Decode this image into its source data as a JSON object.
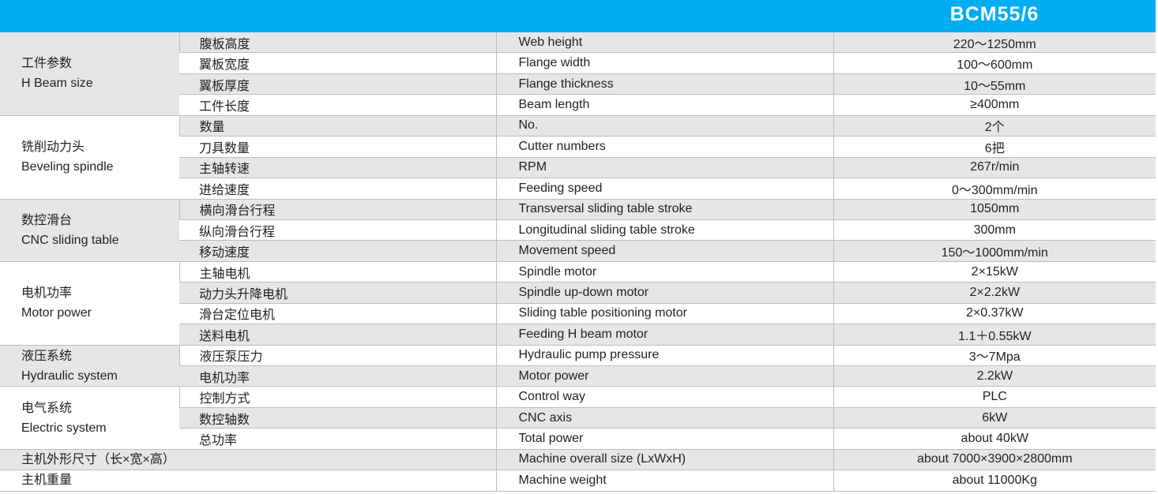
{
  "header": {
    "title": "BCM55/6",
    "color": "#00aeef"
  },
  "groups": [
    {
      "zh": "工件参数",
      "en": "H Beam size",
      "rows": [
        {
          "zh": "腹板高度",
          "en": "Web height",
          "value": "220～1250mm"
        },
        {
          "zh": "翼板宽度",
          "en": "Flange width",
          "value": "100～600mm"
        },
        {
          "zh": "翼板厚度",
          "en": "Flange thickness",
          "value": "10～55mm"
        },
        {
          "zh": "工件长度",
          "en": "Beam length",
          "value": "≥400mm"
        }
      ]
    },
    {
      "zh": "铣削动力头",
      "en": "Beveling spindle",
      "rows": [
        {
          "zh": "数量",
          "en": "No.",
          "value": "2个"
        },
        {
          "zh": "刀具数量",
          "en": "Cutter numbers",
          "value": "6把"
        },
        {
          "zh": "主轴转速",
          "en": "RPM",
          "value": "267r/min"
        },
        {
          "zh": "进给速度",
          "en": "Feeding speed",
          "value": "0～300mm/min"
        }
      ]
    },
    {
      "zh": "数控滑台",
      "en": "CNC sliding table",
      "rows": [
        {
          "zh": "横向滑台行程",
          "en": "Transversal sliding table stroke",
          "value": "1050mm"
        },
        {
          "zh": "纵向滑台行程",
          "en": "Longitudinal sliding table stroke",
          "value": "300mm"
        },
        {
          "zh": "移动速度",
          "en": "Movement speed",
          "value": "150～1000mm/min"
        }
      ]
    },
    {
      "zh": "电机功率",
      "en": "Motor power",
      "rows": [
        {
          "zh": "主轴电机",
          "en": "Spindle motor",
          "value": "2×15kW"
        },
        {
          "zh": "动力头升降电机",
          "en": "Spindle up-down motor",
          "value": "2×2.2kW"
        },
        {
          "zh": "滑台定位电机",
          "en": "Sliding table positioning motor",
          "value": "2×0.37kW"
        },
        {
          "zh": "送料电机",
          "en": "Feeding H beam motor",
          "value": "1.1＋0.55kW"
        }
      ]
    },
    {
      "zh": "液压系统",
      "en": "Hydraulic system",
      "rows": [
        {
          "zh": "液压泵压力",
          "en": "Hydraulic pump pressure",
          "value": "3～7Mpa"
        },
        {
          "zh": "电机功率",
          "en": "Motor power",
          "value": "2.2kW"
        }
      ]
    },
    {
      "zh": "电气系统",
      "en": "Electric system",
      "rows": [
        {
          "zh": "控制方式",
          "en": "Control way",
          "value": "PLC"
        },
        {
          "zh": "数控轴数",
          "en": "CNC axis",
          "value": "6kW"
        },
        {
          "zh": "总功率",
          "en": "Total power",
          "value": "about 40kW"
        }
      ]
    }
  ],
  "singles": [
    {
      "zh": "主机外形尺寸（长×宽×高）",
      "en": "Machine overall size (LxWxH)",
      "value": "about 7000×3900×2800mm"
    },
    {
      "zh": "主机重量",
      "en": "Machine weight",
      "value": "about 11000Kg"
    }
  ]
}
